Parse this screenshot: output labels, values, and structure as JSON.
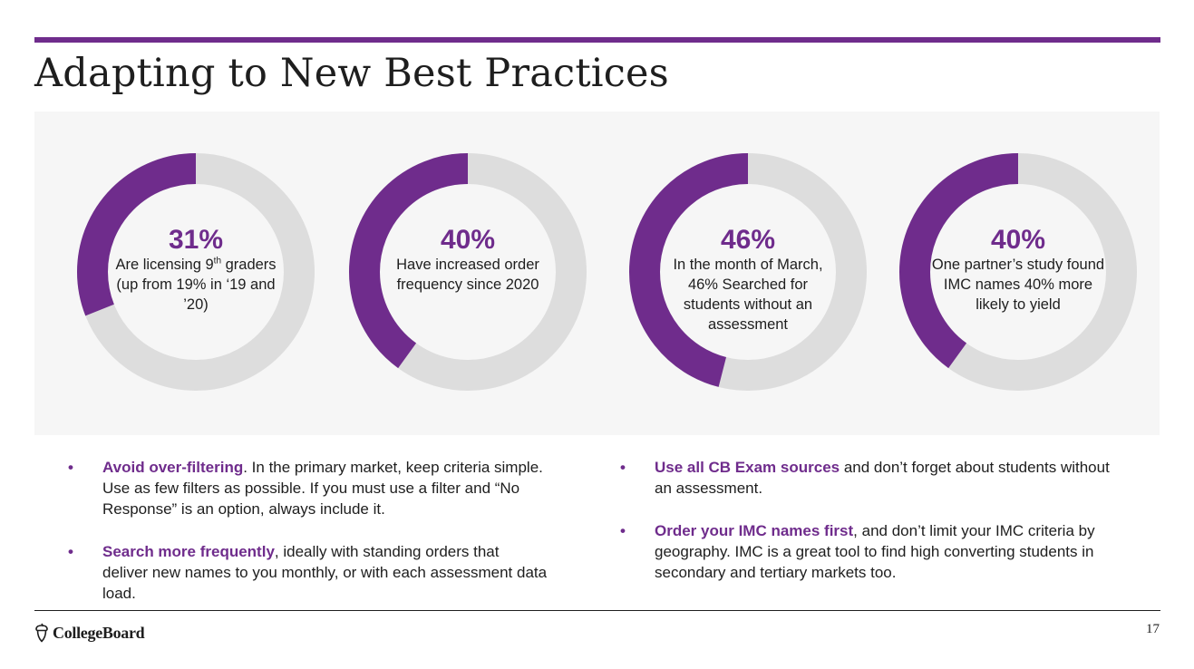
{
  "title": "Adapting to New Best Practices",
  "accent_color": "#6f2c8c",
  "track_color": "#dddddd",
  "stats": [
    {
      "percent": 31,
      "label": "31%",
      "caption_html": "Are licensing 9<sup>th</sup> graders (up from 19% in ‘19 and ’20)"
    },
    {
      "percent": 40,
      "label": "40%",
      "caption_html": "Have increased order frequency since 2020"
    },
    {
      "percent": 46,
      "label": "46%",
      "caption_html": "In the month of March, 46% Searched for students without an assessment"
    },
    {
      "percent": 40,
      "label": "40%",
      "caption_html": "One partner’s study found IMC names 40% more likely to yield"
    }
  ],
  "bullets_left": [
    {
      "highlight": "Avoid over-filtering",
      "text": ". In the primary market, keep criteria simple. Use as few filters as possible. If you must use a filter and “No Response” is an option, always include it."
    },
    {
      "highlight": "Search more frequently",
      "text": ", ideally with standing orders that deliver new names to you monthly, or with each assessment data load."
    }
  ],
  "bullets_right": [
    {
      "highlight": "Use all CB Exam sources",
      "text": " and don’t forget about students without an assessment."
    },
    {
      "highlight": "Order your IMC names first",
      "text": ", and don’t limit your IMC criteria by geography. IMC is a great tool to find high converting students in secondary and tertiary markets too."
    }
  ],
  "bullet_glyph": "•",
  "logo_text": "CollegeBoard",
  "page_number": "17"
}
